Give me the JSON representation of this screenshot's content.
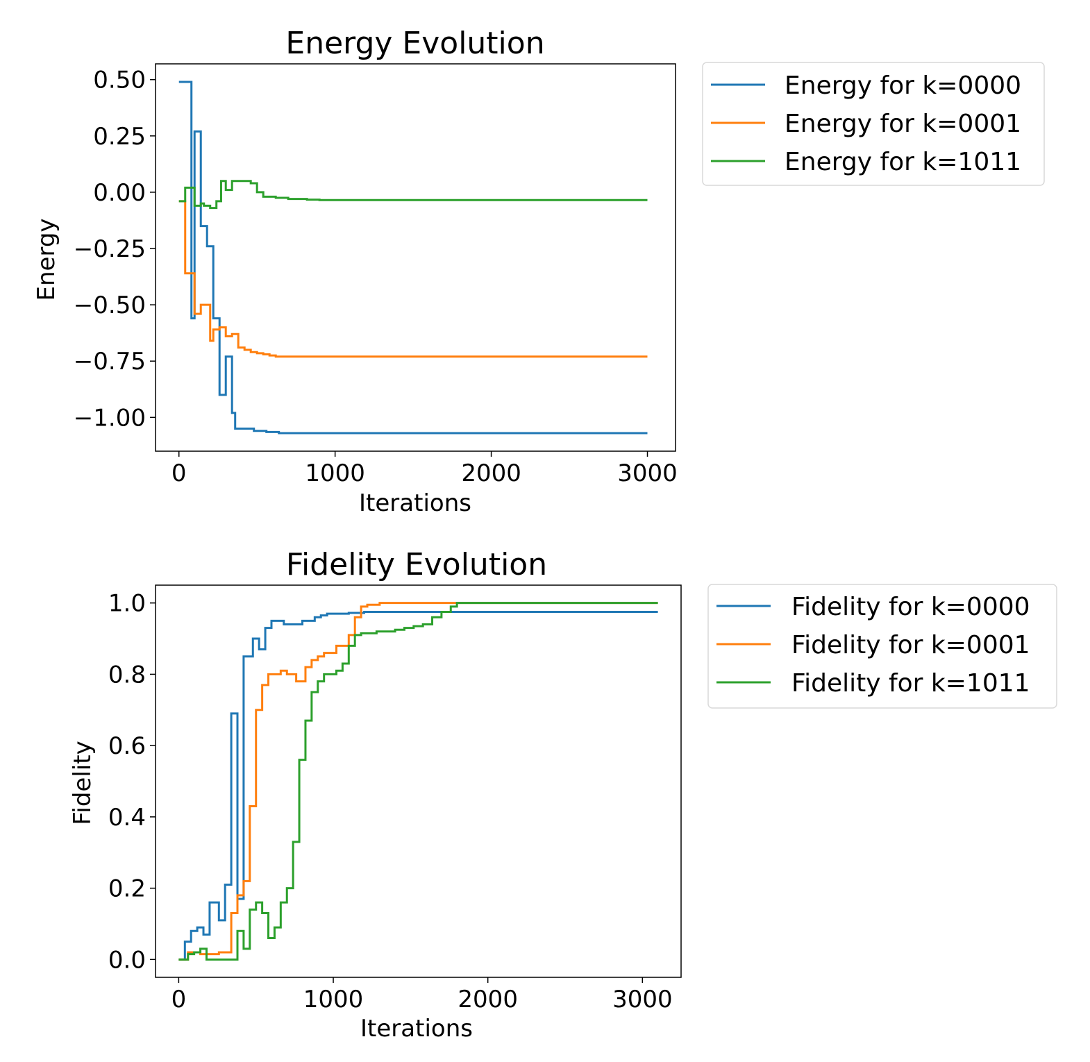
{
  "chart_data": [
    {
      "type": "line",
      "step": true,
      "title": "Energy Evolution",
      "xlabel": "Iterations",
      "ylabel": "Energy",
      "xlim": [
        -150,
        3180
      ],
      "ylim": [
        -1.15,
        0.57
      ],
      "xticks": [
        0,
        1000,
        2000,
        3000
      ],
      "xtick_labels": [
        "0",
        "1000",
        "2000",
        "3000"
      ],
      "yticks": [
        0.5,
        0.25,
        0.0,
        -0.25,
        -0.5,
        -0.75,
        -1.0
      ],
      "ytick_labels": [
        "0.50",
        "0.25",
        "0.00",
        "−0.25",
        "−0.50",
        "−0.75",
        "−1.00"
      ],
      "grid": false,
      "legend_position": "outside-top-right",
      "series": [
        {
          "name": "Energy for k=0000",
          "color": "#1f77b4",
          "x": [
            0,
            40,
            80,
            100,
            140,
            180,
            200,
            220,
            240,
            260,
            300,
            340,
            360,
            400,
            440,
            480,
            520,
            560,
            600,
            640,
            680,
            720,
            760,
            800,
            850,
            900,
            1000,
            1500,
            2000,
            3000
          ],
          "y": [
            0.49,
            0.49,
            -0.56,
            0.27,
            -0.15,
            -0.24,
            -0.24,
            -0.56,
            -0.56,
            -0.9,
            -0.73,
            -0.98,
            -1.05,
            -1.05,
            -1.05,
            -1.06,
            -1.06,
            -1.065,
            -1.065,
            -1.07,
            -1.07,
            -1.07,
            -1.07,
            -1.07,
            -1.07,
            -1.07,
            -1.07,
            -1.07,
            -1.07,
            -1.07
          ]
        },
        {
          "name": "Energy for k=0001",
          "color": "#ff7f0e",
          "x": [
            0,
            40,
            60,
            100,
            140,
            160,
            200,
            220,
            260,
            300,
            340,
            380,
            420,
            460,
            500,
            540,
            580,
            620,
            660,
            700,
            750,
            800,
            1000,
            1500,
            2000,
            3000
          ],
          "y": [
            -0.04,
            -0.36,
            -0.36,
            -0.54,
            -0.5,
            -0.5,
            -0.66,
            -0.61,
            -0.6,
            -0.64,
            -0.63,
            -0.69,
            -0.7,
            -0.71,
            -0.715,
            -0.72,
            -0.725,
            -0.73,
            -0.73,
            -0.73,
            -0.73,
            -0.73,
            -0.73,
            -0.73,
            -0.73,
            -0.73
          ]
        },
        {
          "name": "Energy for k=1011",
          "color": "#2ca02c",
          "x": [
            0,
            40,
            60,
            100,
            140,
            160,
            200,
            240,
            270,
            300,
            340,
            380,
            420,
            460,
            500,
            540,
            580,
            620,
            660,
            700,
            760,
            820,
            900,
            1000,
            1500,
            2000,
            3000
          ],
          "y": [
            -0.04,
            0.02,
            0.02,
            -0.06,
            -0.05,
            -0.06,
            -0.07,
            -0.04,
            0.05,
            0.01,
            0.05,
            0.05,
            0.05,
            0.04,
            0.0,
            -0.02,
            -0.02,
            -0.025,
            -0.025,
            -0.03,
            -0.03,
            -0.033,
            -0.035,
            -0.035,
            -0.035,
            -0.035,
            -0.035
          ]
        }
      ]
    },
    {
      "type": "line",
      "step": true,
      "title": "Fidelity Evolution",
      "xlabel": "Iterations",
      "ylabel": "Fidelity",
      "xlim": [
        -150,
        3250
      ],
      "ylim": [
        -0.05,
        1.05
      ],
      "xticks": [
        0,
        1000,
        2000,
        3000
      ],
      "xtick_labels": [
        "0",
        "1000",
        "2000",
        "3000"
      ],
      "yticks": [
        1.0,
        0.8,
        0.6,
        0.4,
        0.2,
        0.0
      ],
      "ytick_labels": [
        "1.0",
        "0.8",
        "0.6",
        "0.4",
        "0.2",
        "0.0"
      ],
      "grid": false,
      "legend_position": "outside-top-right",
      "series": [
        {
          "name": "Fidelity for k=0000",
          "color": "#1f77b4",
          "x": [
            0,
            40,
            80,
            120,
            160,
            200,
            220,
            260,
            300,
            340,
            380,
            400,
            420,
            440,
            480,
            520,
            560,
            600,
            640,
            680,
            720,
            760,
            800,
            840,
            880,
            920,
            960,
            1000,
            1100,
            1200,
            1300,
            1500,
            2000,
            3100
          ],
          "y": [
            0.0,
            0.05,
            0.08,
            0.09,
            0.07,
            0.16,
            0.16,
            0.11,
            0.21,
            0.69,
            0.17,
            0.17,
            0.85,
            0.85,
            0.9,
            0.87,
            0.93,
            0.95,
            0.95,
            0.94,
            0.94,
            0.94,
            0.95,
            0.95,
            0.96,
            0.965,
            0.97,
            0.97,
            0.972,
            0.975,
            0.975,
            0.975,
            0.975,
            0.975
          ]
        },
        {
          "name": "Fidelity for k=0001",
          "color": "#ff7f0e",
          "x": [
            0,
            60,
            100,
            140,
            180,
            220,
            260,
            300,
            340,
            380,
            420,
            460,
            500,
            540,
            580,
            620,
            660,
            700,
            760,
            820,
            860,
            900,
            940,
            980,
            1020,
            1060,
            1100,
            1140,
            1180,
            1220,
            1300,
            1400,
            1500,
            1800,
            2000,
            3100
          ],
          "y": [
            0.0,
            0.02,
            0.02,
            0.015,
            0.015,
            0.015,
            0.02,
            0.02,
            0.13,
            0.18,
            0.22,
            0.43,
            0.7,
            0.77,
            0.8,
            0.8,
            0.81,
            0.8,
            0.78,
            0.82,
            0.84,
            0.85,
            0.86,
            0.86,
            0.88,
            0.88,
            0.91,
            0.96,
            0.99,
            0.995,
            1.0,
            1.0,
            1.0,
            1.0,
            1.0,
            1.0
          ]
        },
        {
          "name": "Fidelity for k=1011",
          "color": "#2ca02c",
          "x": [
            0,
            60,
            100,
            140,
            180,
            220,
            260,
            300,
            340,
            380,
            420,
            460,
            500,
            540,
            580,
            620,
            660,
            700,
            740,
            780,
            820,
            860,
            900,
            940,
            980,
            1020,
            1060,
            1100,
            1140,
            1180,
            1220,
            1280,
            1340,
            1400,
            1460,
            1520,
            1580,
            1640,
            1700,
            1760,
            1800,
            2000,
            3100
          ],
          "y": [
            0.0,
            0.015,
            0.02,
            0.03,
            0.0,
            0.0,
            0.0,
            0.0,
            0.0,
            0.08,
            0.03,
            0.14,
            0.16,
            0.13,
            0.06,
            0.09,
            0.16,
            0.2,
            0.33,
            0.56,
            0.67,
            0.75,
            0.78,
            0.8,
            0.8,
            0.81,
            0.83,
            0.88,
            0.91,
            0.915,
            0.915,
            0.92,
            0.92,
            0.925,
            0.93,
            0.935,
            0.94,
            0.96,
            0.975,
            0.99,
            1.0,
            1.0,
            1.0
          ]
        }
      ]
    }
  ]
}
